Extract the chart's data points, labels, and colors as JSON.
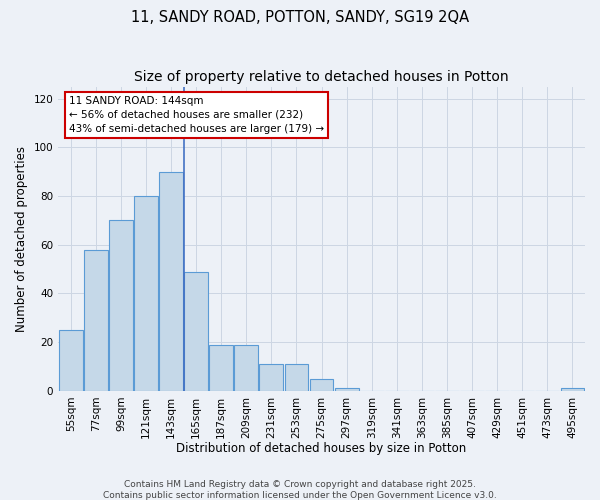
{
  "title": "11, SANDY ROAD, POTTON, SANDY, SG19 2QA",
  "subtitle": "Size of property relative to detached houses in Potton",
  "xlabel": "Distribution of detached houses by size in Potton",
  "ylabel": "Number of detached properties",
  "bar_values": [
    25,
    58,
    70,
    80,
    90,
    49,
    19,
    19,
    11,
    11,
    5,
    1,
    0,
    0,
    0,
    0,
    0,
    0,
    0,
    0,
    1
  ],
  "categories": [
    "55sqm",
    "77sqm",
    "99sqm",
    "121sqm",
    "143sqm",
    "165sqm",
    "187sqm",
    "209sqm",
    "231sqm",
    "253sqm",
    "275sqm",
    "297sqm",
    "319sqm",
    "341sqm",
    "363sqm",
    "385sqm",
    "407sqm",
    "429sqm",
    "451sqm",
    "473sqm",
    "495sqm"
  ],
  "bar_color": "#c5d8e8",
  "bar_edge_color": "#5b9bd5",
  "vline_x": 4.5,
  "vline_color": "#4472c4",
  "annotation_title": "11 SANDY ROAD: 144sqm",
  "annotation_line1": "← 56% of detached houses are smaller (232)",
  "annotation_line2": "43% of semi-detached houses are larger (179) →",
  "annotation_box_facecolor": "#ffffff",
  "annotation_box_edgecolor": "#cc0000",
  "ylim": [
    0,
    125
  ],
  "yticks": [
    0,
    20,
    40,
    60,
    80,
    100,
    120
  ],
  "grid_color": "#cdd6e3",
  "bg_color": "#edf1f7",
  "footer_line1": "Contains HM Land Registry data © Crown copyright and database right 2025.",
  "footer_line2": "Contains public sector information licensed under the Open Government Licence v3.0.",
  "title_fontsize": 10.5,
  "xlabel_fontsize": 8.5,
  "ylabel_fontsize": 8.5,
  "tick_fontsize": 7.5,
  "annot_fontsize": 7.5,
  "footer_fontsize": 6.5
}
